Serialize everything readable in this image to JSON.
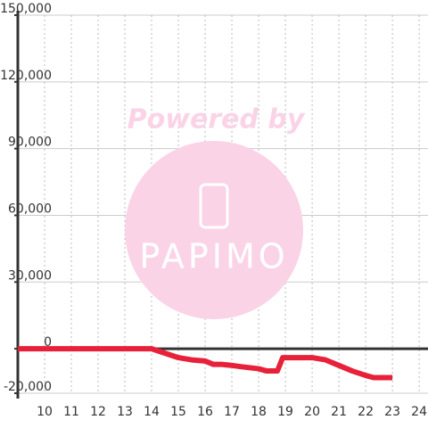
{
  "chart_data": {
    "type": "line",
    "watermark": [
      "Powered by",
      "PAPIMO"
    ],
    "x": [
      9,
      14,
      14.5,
      15,
      15.5,
      16,
      16.3,
      16.6,
      17,
      17.3,
      18,
      18.3,
      18.7,
      18.9,
      19.5,
      20,
      20.5,
      21,
      21.5,
      22,
      22.3,
      23
    ],
    "series": [
      {
        "color": "#e8213a",
        "values": [
          0,
          0,
          -2000,
          -4000,
          -5000,
          -5500,
          -7000,
          -7000,
          -7500,
          -8000,
          -9000,
          -10000,
          -10000,
          -4000,
          -4000,
          -4000,
          -5000,
          -7500,
          -10000,
          -12000,
          -13000,
          -13000
        ]
      }
    ],
    "xlim": [
      9,
      24.33
    ],
    "xticks": [
      10,
      11,
      12,
      13,
      14,
      15,
      16,
      17,
      18,
      19,
      20,
      21,
      22,
      23,
      24
    ],
    "ylim": [
      -20000,
      150000
    ],
    "yticks": [
      {
        "value": -20000,
        "label": "-20,000"
      },
      0,
      {
        "value": 30000,
        "label": "30,000"
      },
      {
        "value": 60000,
        "label": "60,000"
      },
      {
        "value": 90000,
        "label": "90,000"
      },
      {
        "value": 120000,
        "label": "120,000"
      },
      {
        "value": 150000,
        "label": "150,000"
      }
    ],
    "grid": true
  }
}
